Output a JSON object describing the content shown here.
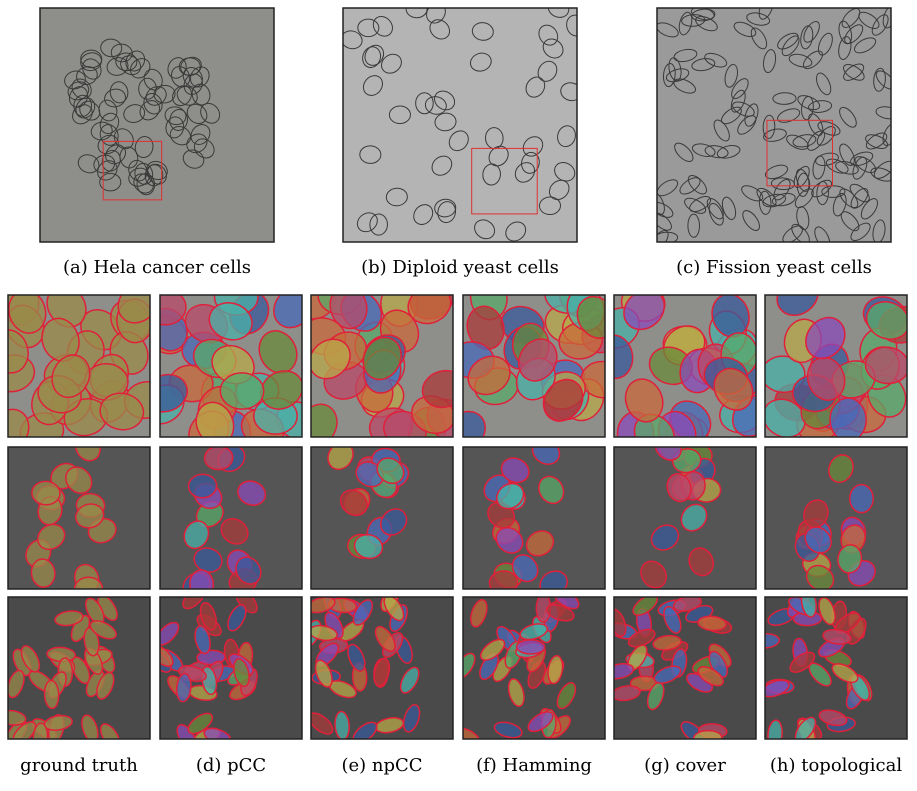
{
  "figure": {
    "panels": [
      {
        "caption": "(a) Hela cancer cells"
      },
      {
        "caption": "(b) Diploid yeast cells"
      },
      {
        "caption": "(c) Fission yeast cells"
      }
    ],
    "columns": [
      "ground truth",
      "(d) pCC",
      "(e) npCC",
      "(f) Hamming",
      "(g) cover",
      "(h) topological"
    ]
  }
}
